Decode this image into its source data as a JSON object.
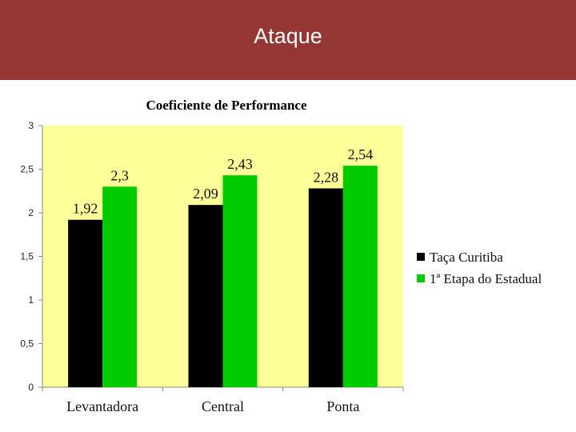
{
  "slide": {
    "title": "Ataque",
    "header_color": "#943634"
  },
  "chart_data": {
    "type": "bar",
    "title": "Coeficiente de Performance",
    "categories": [
      "Levantadora",
      "Central",
      "Ponta"
    ],
    "series": [
      {
        "name": "Taça Curitiba",
        "color": "#000000",
        "values": [
          1.92,
          2.09,
          2.28
        ],
        "labels": [
          "1,92",
          "2,09",
          "2,28"
        ]
      },
      {
        "name": "1ª Etapa do Estadual",
        "color": "#00cc00",
        "values": [
          2.3,
          2.43,
          2.54
        ],
        "labels": [
          "2,3",
          "2,43",
          "2,54"
        ]
      }
    ],
    "ylim": [
      0,
      3
    ],
    "yticks": [
      0,
      0.5,
      1,
      1.5,
      2,
      2.5,
      3
    ],
    "ytick_labels": [
      "0",
      "0,5",
      "1",
      "1,5",
      "2",
      "2,5",
      "3"
    ],
    "plot_background": "#ffff99",
    "grid": false,
    "legend_position": "right"
  }
}
